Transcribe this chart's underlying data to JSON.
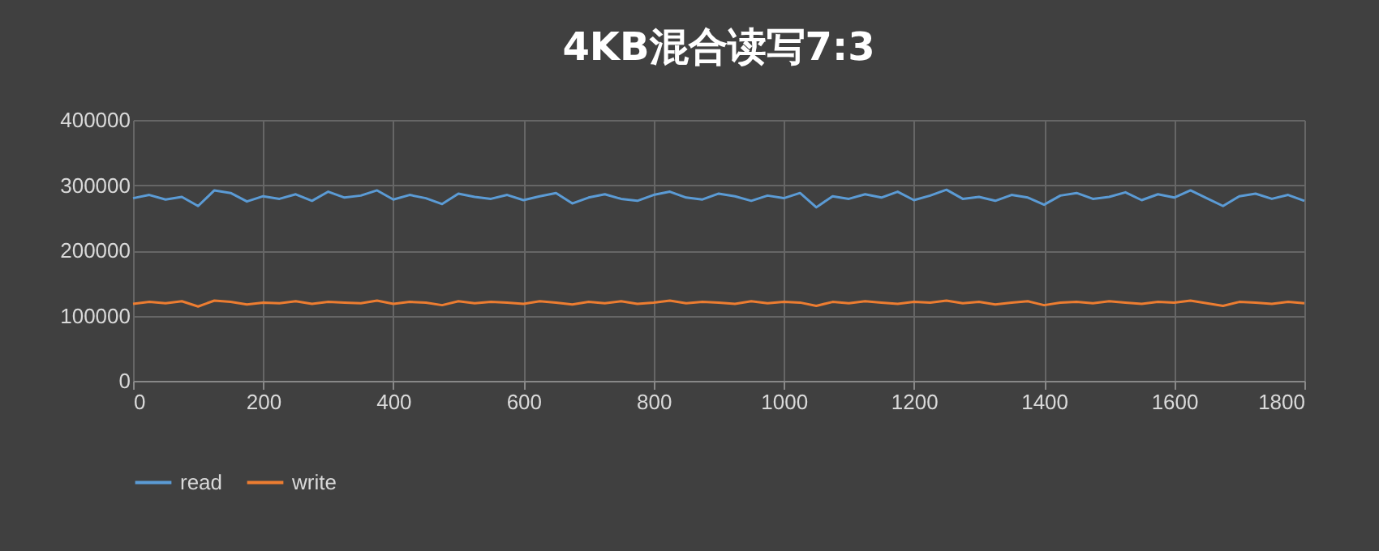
{
  "chart_data": {
    "type": "line",
    "title": "4KB混合读写7:3",
    "x": [
      0,
      25,
      50,
      75,
      100,
      125,
      150,
      175,
      200,
      225,
      250,
      275,
      300,
      325,
      350,
      375,
      400,
      425,
      450,
      475,
      500,
      525,
      550,
      575,
      600,
      625,
      650,
      675,
      700,
      725,
      750,
      775,
      800,
      825,
      850,
      875,
      900,
      925,
      950,
      975,
      1000,
      1025,
      1050,
      1075,
      1100,
      1125,
      1150,
      1175,
      1200,
      1225,
      1250,
      1275,
      1300,
      1325,
      1350,
      1375,
      1400,
      1425,
      1450,
      1475,
      1500,
      1525,
      1550,
      1575,
      1600,
      1625,
      1650,
      1675,
      1700,
      1725,
      1750,
      1775,
      1800
    ],
    "series": [
      {
        "name": "read",
        "color": "#5b9bd5",
        "values": [
          280000,
          285000,
          278000,
          282000,
          268000,
          292000,
          288000,
          275000,
          283000,
          279000,
          286000,
          276000,
          290000,
          281000,
          284000,
          292000,
          278000,
          285000,
          280000,
          271000,
          287000,
          282000,
          279000,
          285000,
          277000,
          283000,
          288000,
          272000,
          281000,
          286000,
          279000,
          276000,
          285000,
          290000,
          281000,
          278000,
          287000,
          283000,
          276000,
          284000,
          280000,
          288000,
          266000,
          283000,
          279000,
          286000,
          281000,
          290000,
          277000,
          284000,
          293000,
          279000,
          282000,
          276000,
          285000,
          281000,
          270000,
          284000,
          288000,
          279000,
          282000,
          289000,
          277000,
          286000,
          281000,
          292000,
          280000,
          268000,
          283000,
          287000,
          279000,
          285000,
          276000
        ]
      },
      {
        "name": "write",
        "color": "#ed7d31",
        "values": [
          118000,
          121000,
          119000,
          122000,
          114000,
          123000,
          121000,
          117000,
          120000,
          119000,
          122000,
          118000,
          121000,
          120000,
          119000,
          123000,
          118000,
          121000,
          120000,
          116000,
          122000,
          119000,
          121000,
          120000,
          118000,
          122000,
          120000,
          117000,
          121000,
          119000,
          122000,
          118000,
          120000,
          123000,
          119000,
          121000,
          120000,
          118000,
          122000,
          119000,
          121000,
          120000,
          115000,
          121000,
          119000,
          122000,
          120000,
          118000,
          121000,
          120000,
          123000,
          119000,
          121000,
          117000,
          120000,
          122000,
          116000,
          120000,
          121000,
          119000,
          122000,
          120000,
          118000,
          121000,
          120000,
          123000,
          119000,
          115000,
          121000,
          120000,
          118000,
          121000,
          119000
        ]
      }
    ],
    "xlim": [
      0,
      1800
    ],
    "xticks": [
      0,
      200,
      400,
      600,
      800,
      1000,
      1200,
      1400,
      1600,
      1800
    ],
    "ylim": [
      0,
      400000
    ],
    "yticks": [
      0,
      100000,
      200000,
      300000,
      400000
    ],
    "grid": true,
    "legend": "bottom"
  }
}
